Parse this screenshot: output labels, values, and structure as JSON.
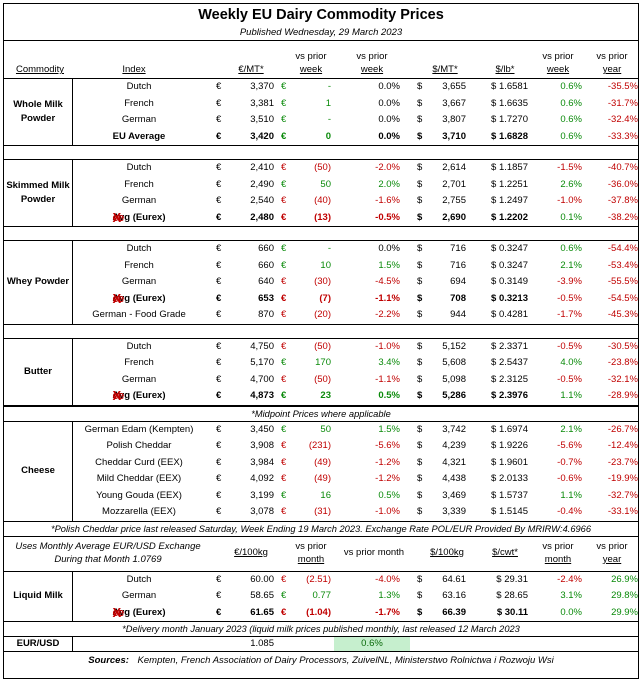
{
  "title": "Weekly EU Dairy Commodity Prices",
  "published": "Published Wednesday, 29 March 2023",
  "header": {
    "commodity": "Commodity",
    "index": "Index",
    "eur_mt": "€/MT*",
    "vs_prior_week_1": "vs prior",
    "vs_prior_week_2": "week",
    "usd_mt": "$/MT*",
    "usd_lb": "$/lb*",
    "vs_prior_year_1": "vs prior",
    "vs_prior_year_2": "year"
  },
  "colors": {
    "negative": "#c00000",
    "positive": "#0a8a0a",
    "highlight": "#c6efce"
  },
  "groups": [
    {
      "product": "Whole Milk Powder",
      "rows": [
        {
          "index": "Dutch",
          "eur": "3,370",
          "chg": "-",
          "chg_color": "grn",
          "pct": "0.0%",
          "usd": "3,655",
          "lb": "$ 1.6581",
          "ws": "0.6%",
          "ws_color": "grn",
          "yr": "-35.5%",
          "yr_color": "red",
          "bold": false,
          "eex": false
        },
        {
          "index": "French",
          "eur": "3,381",
          "chg": "1",
          "chg_color": "grn",
          "pct": "0.0%",
          "usd": "3,667",
          "lb": "$ 1.6635",
          "ws": "0.6%",
          "ws_color": "grn",
          "yr": "-31.7%",
          "yr_color": "red",
          "bold": false,
          "eex": false
        },
        {
          "index": "German",
          "eur": "3,510",
          "chg": "-",
          "chg_color": "grn",
          "pct": "0.0%",
          "usd": "3,807",
          "lb": "$ 1.7270",
          "ws": "0.6%",
          "ws_color": "grn",
          "yr": "-32.4%",
          "yr_color": "red",
          "bold": false,
          "eex": false
        },
        {
          "index": "EU Average",
          "eur": "3,420",
          "chg": "0",
          "chg_color": "grn",
          "pct": "0.0%",
          "usd": "3,710",
          "lb": "$ 1.6828",
          "ws": "0.6%",
          "ws_color": "grn",
          "yr": "-33.3%",
          "yr_color": "red",
          "bold": true,
          "eex": false
        }
      ]
    },
    {
      "product": "Skimmed Milk Powder",
      "rows": [
        {
          "index": "Dutch",
          "eur": "2,410",
          "chg": "(50)",
          "chg_color": "red",
          "pct": "-2.0%",
          "pct_color": "red",
          "usd": "2,614",
          "lb": "$ 1.1857",
          "ws": "-1.5%",
          "ws_color": "red",
          "yr": "-40.7%",
          "yr_color": "red",
          "bold": false,
          "eex": false
        },
        {
          "index": "French",
          "eur": "2,490",
          "chg": "50",
          "chg_color": "grn",
          "pct": "2.0%",
          "pct_color": "grn",
          "usd": "2,701",
          "lb": "$ 1.2251",
          "ws": "2.6%",
          "ws_color": "grn",
          "yr": "-36.0%",
          "yr_color": "red",
          "bold": false,
          "eex": false
        },
        {
          "index": "German",
          "eur": "2,540",
          "chg": "(40)",
          "chg_color": "red",
          "pct": "-1.6%",
          "pct_color": "red",
          "usd": "2,755",
          "lb": "$ 1.2497",
          "ws": "-1.0%",
          "ws_color": "red",
          "yr": "-37.8%",
          "yr_color": "red",
          "bold": false,
          "eex": false
        },
        {
          "index": "Avg (Eurex)",
          "eur": "2,480",
          "chg": "(13)",
          "chg_color": "red",
          "pct": "-0.5%",
          "pct_color": "red",
          "usd": "2,690",
          "lb": "$ 1.2202",
          "ws": "0.1%",
          "ws_color": "grn",
          "yr": "-38.2%",
          "yr_color": "red",
          "bold": true,
          "eex": true
        }
      ]
    },
    {
      "product": "Whey Powder",
      "rows": [
        {
          "index": "Dutch",
          "eur": "660",
          "chg": "-",
          "chg_color": "grn",
          "pct": "0.0%",
          "usd": "716",
          "lb": "$ 0.3247",
          "ws": "0.6%",
          "ws_color": "grn",
          "yr": "-54.4%",
          "yr_color": "red",
          "bold": false,
          "eex": false
        },
        {
          "index": "French",
          "eur": "660",
          "chg": "10",
          "chg_color": "grn",
          "pct": "1.5%",
          "pct_color": "grn",
          "usd": "716",
          "lb": "$ 0.3247",
          "ws": "2.1%",
          "ws_color": "grn",
          "yr": "-53.4%",
          "yr_color": "red",
          "bold": false,
          "eex": false
        },
        {
          "index": "German",
          "eur": "640",
          "chg": "(30)",
          "chg_color": "red",
          "pct": "-4.5%",
          "pct_color": "red",
          "usd": "694",
          "lb": "$ 0.3149",
          "ws": "-3.9%",
          "ws_color": "red",
          "yr": "-55.5%",
          "yr_color": "red",
          "bold": false,
          "eex": false
        },
        {
          "index": "Avg (Eurex)",
          "eur": "653",
          "chg": "(7)",
          "chg_color": "red",
          "pct": "-1.1%",
          "pct_color": "red",
          "usd": "708",
          "lb": "$ 0.3213",
          "ws": "-0.5%",
          "ws_color": "red",
          "yr": "-54.5%",
          "yr_color": "red",
          "bold": true,
          "eex": true
        },
        {
          "index": "German - Food Grade",
          "eur": "870",
          "chg": "(20)",
          "chg_color": "red",
          "pct": "-2.2%",
          "pct_color": "red",
          "usd": "944",
          "lb": "$ 0.4281",
          "ws": "-1.7%",
          "ws_color": "red",
          "yr": "-45.3%",
          "yr_color": "red",
          "bold": false,
          "eex": false
        }
      ]
    },
    {
      "product": "Butter",
      "rows": [
        {
          "index": "Dutch",
          "eur": "4,750",
          "chg": "(50)",
          "chg_color": "red",
          "pct": "-1.0%",
          "pct_color": "red",
          "usd": "5,152",
          "lb": "$ 2.3371",
          "ws": "-0.5%",
          "ws_color": "red",
          "yr": "-30.5%",
          "yr_color": "red",
          "bold": false,
          "eex": false
        },
        {
          "index": "French",
          "eur": "5,170",
          "chg": "170",
          "chg_color": "grn",
          "pct": "3.4%",
          "pct_color": "grn",
          "usd": "5,608",
          "lb": "$ 2.5437",
          "ws": "4.0%",
          "ws_color": "grn",
          "yr": "-23.8%",
          "yr_color": "red",
          "bold": false,
          "eex": false
        },
        {
          "index": "German",
          "eur": "4,700",
          "chg": "(50)",
          "chg_color": "red",
          "pct": "-1.1%",
          "pct_color": "red",
          "usd": "5,098",
          "lb": "$ 2.3125",
          "ws": "-0.5%",
          "ws_color": "red",
          "yr": "-32.1%",
          "yr_color": "red",
          "bold": false,
          "eex": false
        },
        {
          "index": "Avg (Eurex)",
          "eur": "4,873",
          "chg": "23",
          "chg_color": "grn",
          "pct": "0.5%",
          "pct_color": "grn",
          "usd": "5,286",
          "lb": "$ 2.3976",
          "ws": "1.1%",
          "ws_color": "grn",
          "yr": "-28.9%",
          "yr_color": "red",
          "bold": true,
          "eex": true
        }
      ]
    },
    {
      "product": "Cheese",
      "rows": [
        {
          "index": "German Edam (Kempten)",
          "eur": "3,450",
          "chg": "50",
          "chg_color": "grn",
          "pct": "1.5%",
          "pct_color": "grn",
          "usd": "3,742",
          "lb": "$ 1.6974",
          "ws": "2.1%",
          "ws_color": "grn",
          "yr": "-26.7%",
          "yr_color": "red",
          "bold": false,
          "eex": false
        },
        {
          "index": "Polish Cheddar",
          "eur": "3,908",
          "chg": "(231)",
          "chg_color": "red",
          "pct": "-5.6%",
          "pct_color": "red",
          "usd": "4,239",
          "lb": "$ 1.9226",
          "ws": "-5.6%",
          "ws_color": "red",
          "yr": "-12.4%",
          "yr_color": "red",
          "bold": false,
          "eex": false
        },
        {
          "index": "Cheddar Curd (EEX)",
          "eur": "3,984",
          "chg": "(49)",
          "chg_color": "red",
          "pct": "-1.2%",
          "pct_color": "red",
          "usd": "4,321",
          "lb": "$ 1.9601",
          "ws": "-0.7%",
          "ws_color": "red",
          "yr": "-23.7%",
          "yr_color": "red",
          "bold": false,
          "eex": false
        },
        {
          "index": "Mild Cheddar (EEX)",
          "eur": "4,092",
          "chg": "(49)",
          "chg_color": "red",
          "pct": "-1.2%",
          "pct_color": "red",
          "usd": "4,438",
          "lb": "$ 2.0133",
          "ws": "-0.6%",
          "ws_color": "red",
          "yr": "-19.9%",
          "yr_color": "red",
          "bold": false,
          "eex": false
        },
        {
          "index": "Young Gouda (EEX)",
          "eur": "3,199",
          "chg": "16",
          "chg_color": "grn",
          "pct": "0.5%",
          "pct_color": "grn",
          "usd": "3,469",
          "lb": "$ 1.5737",
          "ws": "1.1%",
          "ws_color": "grn",
          "yr": "-32.7%",
          "yr_color": "red",
          "bold": false,
          "eex": false
        },
        {
          "index": "Mozzarella (EEX)",
          "eur": "3,078",
          "chg": "(31)",
          "chg_color": "red",
          "pct": "-1.0%",
          "pct_color": "red",
          "usd": "3,339",
          "lb": "$ 1.5145",
          "ws": "-0.4%",
          "ws_color": "red",
          "yr": "-33.1%",
          "yr_color": "red",
          "bold": false,
          "eex": false
        }
      ]
    }
  ],
  "notes": {
    "midpoint": "*Midpoint Prices where applicable",
    "polish": "*Polish Cheddar price last released Saturday, Week Ending 19 March 2023. Exchange Rate POL/EUR Provided By MRIRW:4.6966",
    "delivery": "*Delivery month January 2023 (liquid milk prices published monthly, last released 12 March 2023"
  },
  "liquid_milk": {
    "exchange_note_1": "Uses Monthly Average EUR/USD Exchange",
    "exchange_note_2": "During that Month 1.0769",
    "h_eur": "€/100kg",
    "h_vs_month_1": "vs prior",
    "h_vs_month_2": "month",
    "h_vs_month_pct": "vs prior month",
    "h_usd": "$/100kg",
    "h_cwt": "$/cwt*",
    "h_ws_1": "vs prior",
    "h_ws_2": "month",
    "h_yr_1": "vs prior",
    "h_yr_2": "year",
    "product": "Liquid Milk",
    "rows": [
      {
        "index": "Dutch",
        "eur": "60.00",
        "chg": "(2.51)",
        "chg_color": "red",
        "pct": "-4.0%",
        "pct_color": "red",
        "usd": "64.61",
        "lb": "$ 29.31",
        "ws": "-2.4%",
        "ws_color": "red",
        "yr": "26.9%",
        "yr_color": "grn",
        "bold": false,
        "eex": false
      },
      {
        "index": "German",
        "eur": "58.65",
        "chg": "0.77",
        "chg_color": "grn",
        "pct": "1.3%",
        "pct_color": "grn",
        "usd": "63.16",
        "lb": "$ 28.65",
        "ws": "3.1%",
        "ws_color": "grn",
        "yr": "29.8%",
        "yr_color": "grn",
        "bold": false,
        "eex": false
      },
      {
        "index": "Avg (Eurex)",
        "eur": "61.65",
        "chg": "(1.04)",
        "chg_color": "red",
        "pct": "-1.7%",
        "pct_color": "red",
        "usd": "66.39",
        "lb": "$ 30.11",
        "ws": "0.0%",
        "ws_color": "grn",
        "yr": "29.9%",
        "yr_color": "grn",
        "bold": true,
        "eex": true
      }
    ]
  },
  "eur_usd": {
    "label": "EUR/USD",
    "value": "1.085",
    "change": "0.6%"
  },
  "sources": {
    "label": "Sources:",
    "text": "Kempten, French Association of Dairy Processors, ZuivelNL, Ministerstwo Rolnictwa i Rozwoju Wsi"
  },
  "symbols": {
    "euro": "€",
    "dollar": "$",
    "eex_ee": "ee",
    "eex_x": "X"
  }
}
